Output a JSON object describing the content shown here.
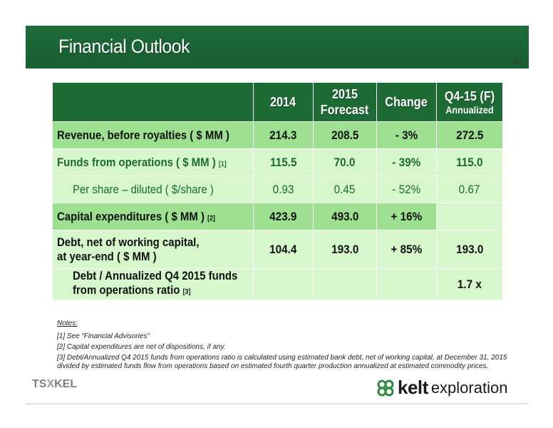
{
  "header": {
    "title": "Financial Outlook",
    "page_number": "13"
  },
  "table": {
    "columns": [
      {
        "main": "2014",
        "sub": ""
      },
      {
        "main": "2015",
        "sub": "Forecast"
      },
      {
        "main": "Change",
        "sub": ""
      },
      {
        "main": "Q4-15 (F)",
        "sub": "Annualized"
      }
    ],
    "rows": [
      {
        "label": "Revenue, before royalties ( $ MM )",
        "footnote": "",
        "values": [
          "214.3",
          "208.5",
          "- 3%",
          "272.5"
        ]
      },
      {
        "label": "Funds from operations ( $ MM )",
        "footnote": "[1]",
        "values": [
          "115.5",
          "70.0",
          "- 39%",
          "115.0"
        ]
      },
      {
        "label": "Per share – diluted ( $/share )",
        "footnote": "",
        "values": [
          "0.93",
          "0.45",
          "- 52%",
          "0.67"
        ]
      },
      {
        "label": "Capital expenditures ( $ MM )",
        "footnote": "[2]",
        "values": [
          "423.9",
          "493.0",
          "+ 16%",
          ""
        ]
      },
      {
        "label_line1": "Debt, net of working capital,",
        "label_line2": " at year-end ( $ MM )",
        "footnote": "",
        "values": [
          "104.4",
          "193.0",
          "+ 85%",
          "193.0"
        ]
      },
      {
        "label_line1": "Debt / Annualized Q4 2015 funds",
        "label_line2": "from operations ratio",
        "footnote": "[3]",
        "values": [
          "",
          "",
          "",
          "1.7 x"
        ]
      }
    ]
  },
  "notes": {
    "title": "Notes:",
    "items": [
      "[1] See “Financial Advisories”",
      "[2] Capital expenditures are net of dispositions, if any.",
      "[3] Debt/Annualized Q4 2015 funds from operations ratio is calculated using estimated bank debt, net of working capital, at December 31, 2015 divided by estimated funds flow from operations based on estimated fourth quarter production annualized at estimated commodity prices."
    ]
  },
  "logos": {
    "tsx_left": "TS",
    "tsx_x": "X",
    "tsx_right": "KEL",
    "kelt_word": "kelt",
    "kelt_sub": "exploration"
  },
  "colors": {
    "header_green": "#1d6a35",
    "row_dark": "#9de08f",
    "row_light": "#d6f7cc",
    "text_green": "#1c6a2f"
  }
}
